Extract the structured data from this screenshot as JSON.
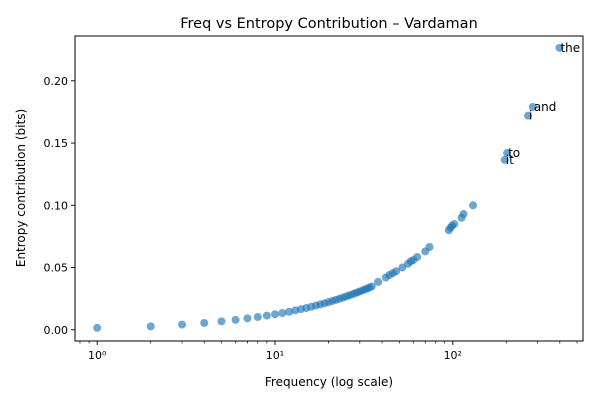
{
  "chart_data": {
    "type": "scatter",
    "title": "Freq vs Entropy Contribution – Vardaman",
    "xlabel": "Frequency (log scale)",
    "ylabel": "Entropy contribution (bits)",
    "xscale": "log",
    "xlim": [
      0.75,
      540
    ],
    "ylim": [
      -0.009,
      0.236
    ],
    "xticks": [
      1,
      10,
      100
    ],
    "xtick_labels": [
      "10⁰",
      "10¹",
      "10²"
    ],
    "yticks": [
      0.0,
      0.05,
      0.1,
      0.15,
      0.2
    ],
    "ytick_labels": [
      "0.00",
      "0.05",
      "0.10",
      "0.15",
      "0.20"
    ],
    "grid": false,
    "legend": "none",
    "colors": {
      "points": "#1f77b4"
    },
    "series": [
      {
        "x": [
          1,
          2,
          3,
          4,
          5,
          6,
          7,
          8,
          9,
          10,
          11,
          12,
          13,
          14,
          15,
          16,
          17,
          18,
          19,
          20,
          21,
          22,
          23,
          24,
          25,
          26,
          27,
          28,
          29,
          30,
          31,
          32,
          33,
          34,
          35,
          38,
          42,
          44,
          46,
          48,
          52,
          56,
          58,
          60,
          63,
          70,
          74,
          95,
          97,
          99,
          102,
          112,
          115,
          130,
          196,
          202,
          265,
          282,
          398
        ],
        "y": [
          0.0015,
          0.0027,
          0.0042,
          0.0055,
          0.0068,
          0.008,
          0.0092,
          0.0103,
          0.0114,
          0.0125,
          0.0135,
          0.0145,
          0.0156,
          0.0166,
          0.0175,
          0.0185,
          0.0195,
          0.0204,
          0.0213,
          0.0222,
          0.0231,
          0.024,
          0.0249,
          0.0258,
          0.0266,
          0.0275,
          0.0283,
          0.0292,
          0.03,
          0.0308,
          0.0316,
          0.0324,
          0.0332,
          0.034,
          0.0348,
          0.0385,
          0.042,
          0.044,
          0.0455,
          0.047,
          0.05,
          0.053,
          0.055,
          0.056,
          0.0585,
          0.063,
          0.0665,
          0.08,
          0.082,
          0.0835,
          0.085,
          0.09,
          0.093,
          0.1,
          0.1365,
          0.142,
          0.172,
          0.179,
          0.2265
        ]
      }
    ],
    "annotations": [
      {
        "text": "the",
        "x": 398,
        "y": 0.2265
      },
      {
        "text": "and",
        "x": 282,
        "y": 0.179
      },
      {
        "text": "i",
        "x": 265,
        "y": 0.172
      },
      {
        "text": "to",
        "x": 202,
        "y": 0.142
      },
      {
        "text": "it",
        "x": 196,
        "y": 0.1365
      }
    ]
  }
}
